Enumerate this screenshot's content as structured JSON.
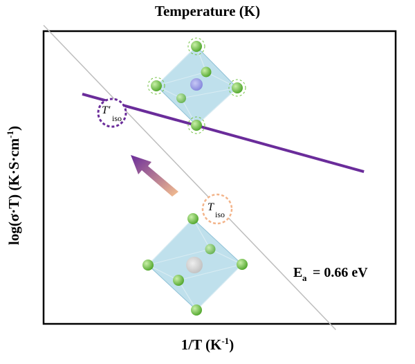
{
  "chart_data": {
    "type": "line",
    "title": "Temperature (K)",
    "xlabel_main": "1/T (K",
    "xlabel_sup": "-1",
    "xlabel_end": ")",
    "ylabel_main": "log(σ·T) (K·S·cm",
    "ylabel_sup": "-1",
    "ylabel_end": ")",
    "xlim": [
      0,
      1
    ],
    "ylim": [
      0,
      1
    ],
    "grid": false,
    "series": [
      {
        "name": "",
        "color": "#6a2c9a",
        "x": [
          0.11,
          0.91
        ],
        "y": [
          0.785,
          0.52
        ]
      },
      {
        "name": "",
        "color": "#bdbdbd",
        "x": [
          0.0,
          0.83
        ],
        "y": [
          1.02,
          -0.02
        ]
      }
    ],
    "annotations": {
      "ea_text": "E",
      "ea_sub": "a",
      "ea_value": " = 0.66 eV",
      "tiso_prime_label": "T′",
      "tiso_prime_sub": "iso",
      "tiso_label": "T",
      "tiso_sub": "iso"
    },
    "colors": {
      "purple_line": "#6a2c9a",
      "gray_line": "#bdbdbd",
      "arrow_start": "#f6c08f",
      "arrow_end": "#6a2c9a",
      "octahedron_fill": "#a9d6e5",
      "atom_green": "#6dbf3b",
      "tiso_prime_ring": "#6a2c9a",
      "tiso_ring": "#f3b48a"
    }
  }
}
